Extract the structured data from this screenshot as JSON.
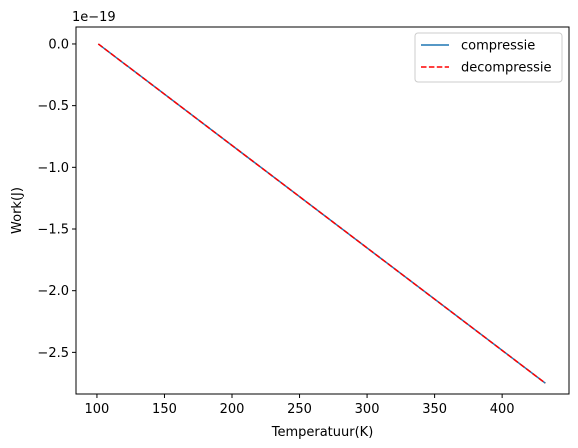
{
  "chart_data": {
    "type": "line",
    "xlabel": "Temperatuur(K)",
    "ylabel": "Work(J)",
    "y_offset_label": "1e−19",
    "xlim": [
      84.5,
      449.5
    ],
    "ylim": [
      -2.8375,
      0.1375
    ],
    "xticks": [
      100,
      150,
      200,
      250,
      300,
      350,
      400
    ],
    "yticks": [
      0.0,
      -0.5,
      -1.0,
      -1.5,
      -2.0,
      -2.5
    ],
    "ytick_labels": [
      "0.0",
      "−0.5",
      "−1.0",
      "−1.5",
      "−2.0",
      "−2.5"
    ],
    "grid": false,
    "legend_position": "upper-right",
    "series": [
      {
        "name": "compressie",
        "color": "#1f77b4",
        "style": "solid",
        "x": [
          101,
          432
        ],
        "y": [
          0.0,
          -2.75
        ]
      },
      {
        "name": "decompressie",
        "color": "#ff0000",
        "style": "dashed",
        "x": [
          101,
          432
        ],
        "y": [
          0.0,
          -2.75
        ]
      }
    ]
  }
}
